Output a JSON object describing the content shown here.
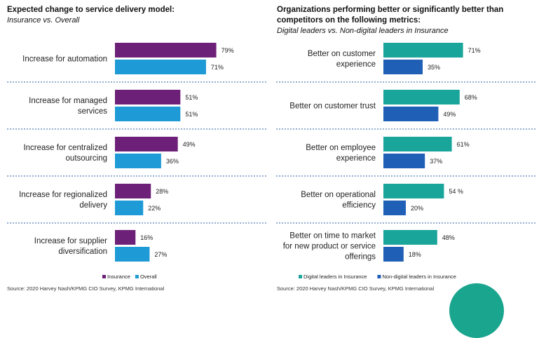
{
  "colors": {
    "insurance": "#6d2077",
    "overall": "#1e9ad6",
    "digital": "#1aa59a",
    "nondigital": "#1f5fb5",
    "separator": "#2a5fa0"
  },
  "left": {
    "title": "Expected change to service delivery model:",
    "subtitle": "Insurance vs. Overall",
    "source": "Source: 2020 Harvey Nash/KPMG CIO Survey, KPMG International"
  },
  "right": {
    "title_line1": "Organizations performing better or significantly better than",
    "title_line2": "competitors on the following metrics:",
    "subtitle": "Digital leaders vs. Non-digital leaders in Insurance",
    "source": "Source: 2020 Harvey Nash/KPMG CIO Survey, KPMG International"
  },
  "chart_data": [
    {
      "type": "bar",
      "orientation": "horizontal",
      "title": "Expected change to service delivery model:",
      "subtitle": "Insurance vs. Overall",
      "xlim": [
        0,
        100
      ],
      "legend": "bottom-right",
      "grid": false,
      "categories": [
        [
          "Increase for automation"
        ],
        [
          "Increase for managed",
          "services"
        ],
        [
          "Increase for centralized",
          "outsourcing"
        ],
        [
          "Increase for regionalized",
          "delivery"
        ],
        [
          "Increase for supplier",
          "diversification"
        ]
      ],
      "series": [
        {
          "name": "Insurance",
          "color": "#6d2077",
          "values": [
            79,
            51,
            49,
            28,
            16
          ],
          "labels": [
            "79%",
            "51%",
            "49%",
            "28%",
            "16%"
          ]
        },
        {
          "name": "Overall",
          "color": "#1e9ad6",
          "values": [
            71,
            51,
            36,
            22,
            27
          ],
          "labels": [
            "71%",
            "51%",
            "36%",
            "22%",
            "27%"
          ]
        }
      ]
    },
    {
      "type": "bar",
      "orientation": "horizontal",
      "title": "Organizations performing better or significantly better than competitors on the following metrics:",
      "subtitle": "Digital leaders vs. Non-digital leaders in Insurance",
      "xlim": [
        0,
        100
      ],
      "legend": "bottom-right",
      "grid": false,
      "categories": [
        [
          "Better on customer",
          "experience"
        ],
        [
          "Better on customer trust"
        ],
        [
          "Better on employee",
          "experience"
        ],
        [
          "Better on operational",
          "efficiency"
        ],
        [
          "Better on time to market",
          "for new product or service",
          "offerings"
        ]
      ],
      "series": [
        {
          "name": "Digital leaders in Insurance",
          "color": "#1aa59a",
          "values": [
            71,
            68,
            61,
            54,
            48
          ],
          "labels": [
            "71%",
            "68%",
            "61%",
            "54 %",
            "48%"
          ]
        },
        {
          "name": "Non-digital leaders in Insurance",
          "color": "#1f5fb5",
          "values": [
            35,
            49,
            37,
            20,
            18
          ],
          "labels": [
            "35%",
            "49%",
            "37%",
            "20%",
            "18%"
          ]
        }
      ]
    }
  ]
}
